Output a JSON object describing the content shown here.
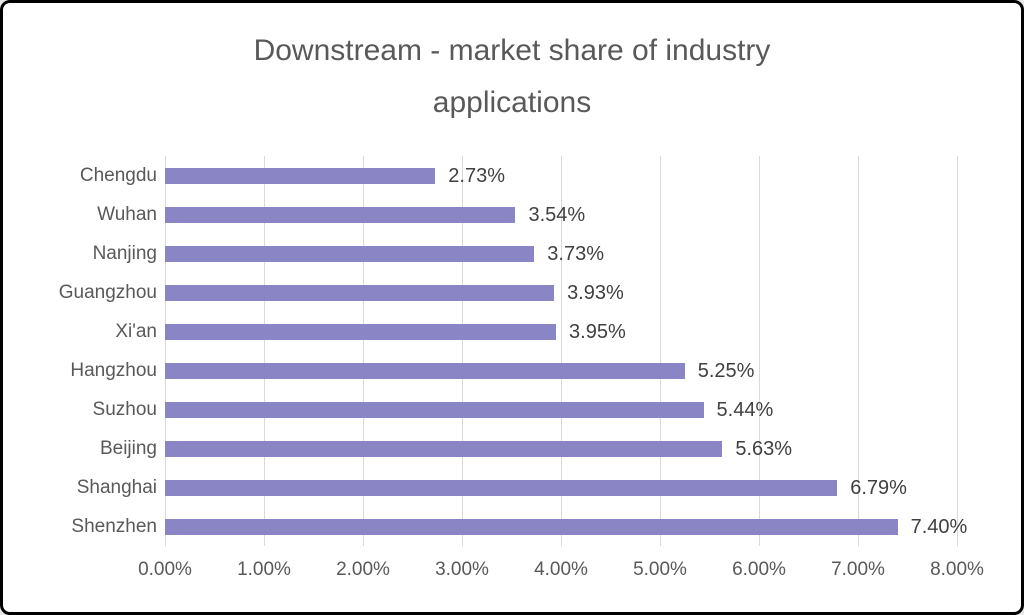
{
  "chart_data": {
    "type": "bar",
    "orientation": "horizontal",
    "title": "Downstream - market share of industry applications",
    "categories": [
      "Chengdu",
      "Wuhan",
      "Nanjing",
      "Guangzhou",
      "Xi'an",
      "Hangzhou",
      "Suzhou",
      "Beijing",
      "Shanghai",
      "Shenzhen"
    ],
    "values": [
      2.73,
      3.54,
      3.73,
      3.93,
      3.95,
      5.25,
      5.44,
      5.63,
      6.79,
      7.4
    ],
    "value_labels": [
      "2.73%",
      "3.54%",
      "3.73%",
      "3.93%",
      "3.95%",
      "5.25%",
      "5.44%",
      "5.63%",
      "6.79%",
      "7.40%"
    ],
    "x_ticks": [
      "0.00%",
      "1.00%",
      "2.00%",
      "3.00%",
      "4.00%",
      "5.00%",
      "6.00%",
      "7.00%",
      "8.00%"
    ],
    "xlim": [
      0,
      8
    ],
    "xlabel": "",
    "ylabel": "",
    "grid": true,
    "legend": false,
    "colors": {
      "bar": "#8a86c6",
      "gridline": "#d9d9d9",
      "title_text": "#595959",
      "axis_text": "#595959",
      "value_text": "#404040",
      "background": "#ffffff",
      "border": "#000000"
    }
  }
}
